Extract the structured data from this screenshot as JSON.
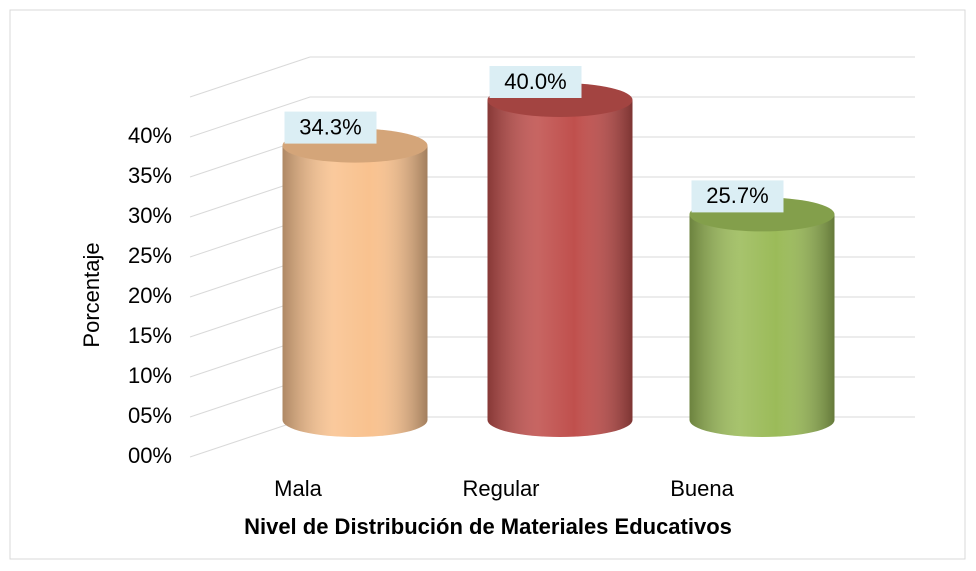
{
  "chart_data": {
    "type": "cylinder",
    "categories": [
      "Mala",
      "Regular",
      "Buena"
    ],
    "values": [
      34.3,
      40.0,
      25.7
    ],
    "value_labels": [
      "34.3%",
      "40.0%",
      "25.7%"
    ],
    "colors": [
      "#f9c28f",
      "#c0504d",
      "#9bbb59"
    ],
    "y_label": "Porcentaje",
    "x_label": "Nivel de Distribución de Materiales Educativos",
    "ylim": [
      0,
      45
    ],
    "yticks": [
      {
        "value": 0,
        "label": "00%"
      },
      {
        "value": 5,
        "label": "05%"
      },
      {
        "value": 10,
        "label": "10%"
      },
      {
        "value": 15,
        "label": "15%"
      },
      {
        "value": 20,
        "label": "20%"
      },
      {
        "value": 25,
        "label": "25%"
      },
      {
        "value": 30,
        "label": "30%"
      },
      {
        "value": 35,
        "label": "35%"
      },
      {
        "value": 40,
        "label": "40%"
      }
    ],
    "grid": true
  }
}
